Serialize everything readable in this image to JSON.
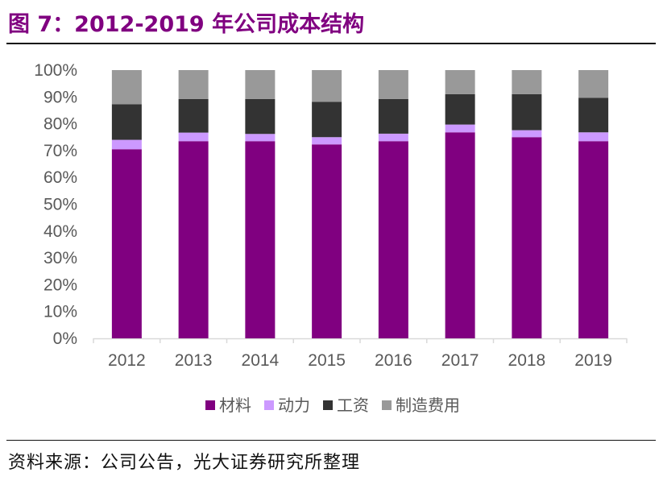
{
  "title": "图 7：2012-2019 年公司成本结构",
  "source": "资料来源：公司公告，光大证券研究所整理",
  "chart_data": {
    "type": "bar",
    "stacked": true,
    "categories": [
      "2012",
      "2013",
      "2014",
      "2015",
      "2016",
      "2017",
      "2018",
      "2019"
    ],
    "series": [
      {
        "name": "材料",
        "color": "#800080",
        "values": [
          70.5,
          73.5,
          73.5,
          72.3,
          73.5,
          76.8,
          75.0,
          73.5
        ]
      },
      {
        "name": "动力",
        "color": "#CC99FF",
        "values": [
          3.5,
          3.2,
          2.7,
          2.7,
          2.8,
          2.9,
          2.6,
          3.3
        ]
      },
      {
        "name": "工资",
        "color": "#333333",
        "values": [
          13.3,
          12.5,
          13.0,
          13.2,
          12.9,
          11.3,
          13.4,
          12.9
        ]
      },
      {
        "name": "制造费用",
        "color": "#999999",
        "values": [
          12.7,
          10.8,
          10.8,
          11.8,
          10.8,
          9.0,
          9.0,
          10.3
        ]
      }
    ],
    "y_ticks": [
      "0%",
      "10%",
      "20%",
      "30%",
      "40%",
      "50%",
      "60%",
      "70%",
      "80%",
      "90%",
      "100%"
    ],
    "ylim": [
      0,
      100
    ],
    "grid": false,
    "legend_position": "bottom"
  }
}
